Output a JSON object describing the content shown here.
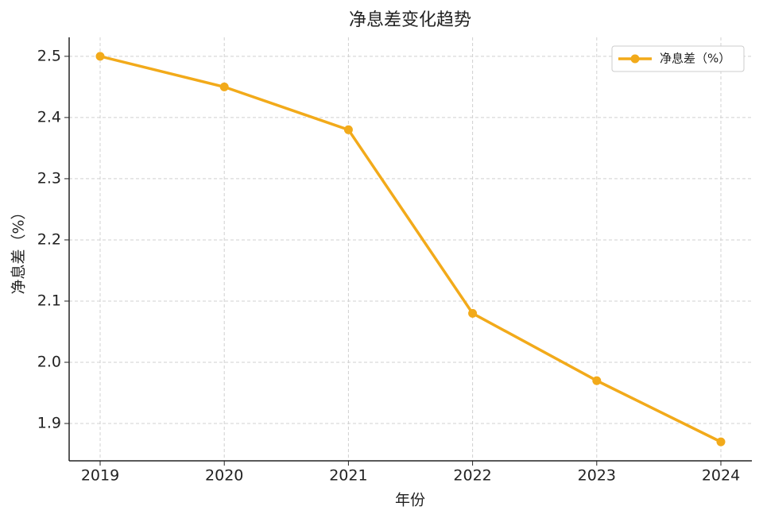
{
  "chart_data": {
    "type": "line",
    "title": "净息差变化趋势",
    "x_label": "年份",
    "y_label": "净息差（%）",
    "categories": [
      "2019",
      "2020",
      "2021",
      "2022",
      "2023",
      "2024"
    ],
    "series": [
      {
        "name": "净息差（%）",
        "color": "#f2aa1a",
        "values": [
          2.5,
          2.45,
          2.38,
          2.08,
          1.97,
          1.87
        ]
      }
    ],
    "ylim": [
      1.839,
      2.531
    ],
    "yticks": [
      1.9,
      {
        "value": 2.0,
        "label": "2.0"
      },
      2.1,
      2.2,
      2.3,
      2.4,
      2.5
    ],
    "grid": true,
    "legend": "upper right"
  }
}
